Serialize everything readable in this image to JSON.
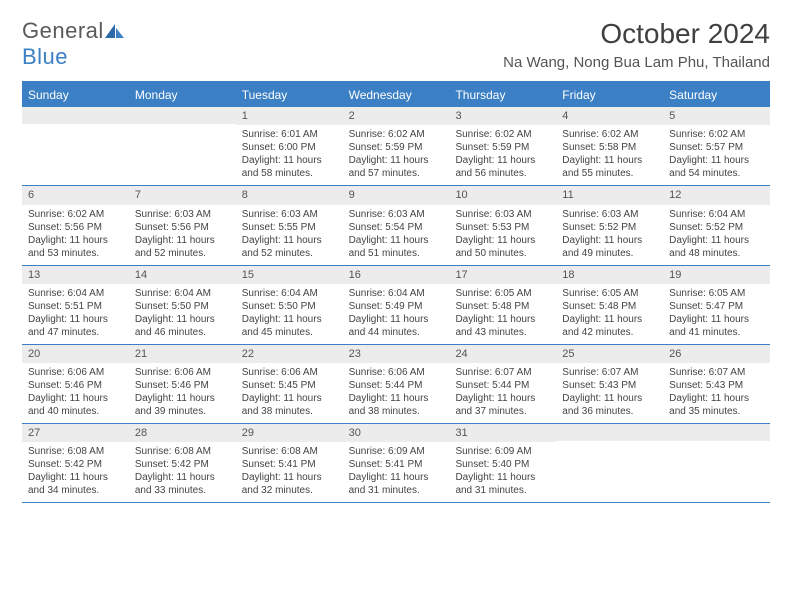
{
  "logo": {
    "word1": "General",
    "word2": "Blue"
  },
  "title": "October 2024",
  "location": "Na Wang, Nong Bua Lam Phu, Thailand",
  "colors": {
    "accent": "#3b7fc4",
    "header_bg": "#3b7fc4",
    "daynum_bg": "#ececec"
  },
  "day_headers": [
    "Sunday",
    "Monday",
    "Tuesday",
    "Wednesday",
    "Thursday",
    "Friday",
    "Saturday"
  ],
  "weeks": [
    [
      {
        "n": "",
        "sr": "",
        "ss": "",
        "dl": ""
      },
      {
        "n": "",
        "sr": "",
        "ss": "",
        "dl": ""
      },
      {
        "n": "1",
        "sr": "Sunrise: 6:01 AM",
        "ss": "Sunset: 6:00 PM",
        "dl": "Daylight: 11 hours and 58 minutes."
      },
      {
        "n": "2",
        "sr": "Sunrise: 6:02 AM",
        "ss": "Sunset: 5:59 PM",
        "dl": "Daylight: 11 hours and 57 minutes."
      },
      {
        "n": "3",
        "sr": "Sunrise: 6:02 AM",
        "ss": "Sunset: 5:59 PM",
        "dl": "Daylight: 11 hours and 56 minutes."
      },
      {
        "n": "4",
        "sr": "Sunrise: 6:02 AM",
        "ss": "Sunset: 5:58 PM",
        "dl": "Daylight: 11 hours and 55 minutes."
      },
      {
        "n": "5",
        "sr": "Sunrise: 6:02 AM",
        "ss": "Sunset: 5:57 PM",
        "dl": "Daylight: 11 hours and 54 minutes."
      }
    ],
    [
      {
        "n": "6",
        "sr": "Sunrise: 6:02 AM",
        "ss": "Sunset: 5:56 PM",
        "dl": "Daylight: 11 hours and 53 minutes."
      },
      {
        "n": "7",
        "sr": "Sunrise: 6:03 AM",
        "ss": "Sunset: 5:56 PM",
        "dl": "Daylight: 11 hours and 52 minutes."
      },
      {
        "n": "8",
        "sr": "Sunrise: 6:03 AM",
        "ss": "Sunset: 5:55 PM",
        "dl": "Daylight: 11 hours and 52 minutes."
      },
      {
        "n": "9",
        "sr": "Sunrise: 6:03 AM",
        "ss": "Sunset: 5:54 PM",
        "dl": "Daylight: 11 hours and 51 minutes."
      },
      {
        "n": "10",
        "sr": "Sunrise: 6:03 AM",
        "ss": "Sunset: 5:53 PM",
        "dl": "Daylight: 11 hours and 50 minutes."
      },
      {
        "n": "11",
        "sr": "Sunrise: 6:03 AM",
        "ss": "Sunset: 5:52 PM",
        "dl": "Daylight: 11 hours and 49 minutes."
      },
      {
        "n": "12",
        "sr": "Sunrise: 6:04 AM",
        "ss": "Sunset: 5:52 PM",
        "dl": "Daylight: 11 hours and 48 minutes."
      }
    ],
    [
      {
        "n": "13",
        "sr": "Sunrise: 6:04 AM",
        "ss": "Sunset: 5:51 PM",
        "dl": "Daylight: 11 hours and 47 minutes."
      },
      {
        "n": "14",
        "sr": "Sunrise: 6:04 AM",
        "ss": "Sunset: 5:50 PM",
        "dl": "Daylight: 11 hours and 46 minutes."
      },
      {
        "n": "15",
        "sr": "Sunrise: 6:04 AM",
        "ss": "Sunset: 5:50 PM",
        "dl": "Daylight: 11 hours and 45 minutes."
      },
      {
        "n": "16",
        "sr": "Sunrise: 6:04 AM",
        "ss": "Sunset: 5:49 PM",
        "dl": "Daylight: 11 hours and 44 minutes."
      },
      {
        "n": "17",
        "sr": "Sunrise: 6:05 AM",
        "ss": "Sunset: 5:48 PM",
        "dl": "Daylight: 11 hours and 43 minutes."
      },
      {
        "n": "18",
        "sr": "Sunrise: 6:05 AM",
        "ss": "Sunset: 5:48 PM",
        "dl": "Daylight: 11 hours and 42 minutes."
      },
      {
        "n": "19",
        "sr": "Sunrise: 6:05 AM",
        "ss": "Sunset: 5:47 PM",
        "dl": "Daylight: 11 hours and 41 minutes."
      }
    ],
    [
      {
        "n": "20",
        "sr": "Sunrise: 6:06 AM",
        "ss": "Sunset: 5:46 PM",
        "dl": "Daylight: 11 hours and 40 minutes."
      },
      {
        "n": "21",
        "sr": "Sunrise: 6:06 AM",
        "ss": "Sunset: 5:46 PM",
        "dl": "Daylight: 11 hours and 39 minutes."
      },
      {
        "n": "22",
        "sr": "Sunrise: 6:06 AM",
        "ss": "Sunset: 5:45 PM",
        "dl": "Daylight: 11 hours and 38 minutes."
      },
      {
        "n": "23",
        "sr": "Sunrise: 6:06 AM",
        "ss": "Sunset: 5:44 PM",
        "dl": "Daylight: 11 hours and 38 minutes."
      },
      {
        "n": "24",
        "sr": "Sunrise: 6:07 AM",
        "ss": "Sunset: 5:44 PM",
        "dl": "Daylight: 11 hours and 37 minutes."
      },
      {
        "n": "25",
        "sr": "Sunrise: 6:07 AM",
        "ss": "Sunset: 5:43 PM",
        "dl": "Daylight: 11 hours and 36 minutes."
      },
      {
        "n": "26",
        "sr": "Sunrise: 6:07 AM",
        "ss": "Sunset: 5:43 PM",
        "dl": "Daylight: 11 hours and 35 minutes."
      }
    ],
    [
      {
        "n": "27",
        "sr": "Sunrise: 6:08 AM",
        "ss": "Sunset: 5:42 PM",
        "dl": "Daylight: 11 hours and 34 minutes."
      },
      {
        "n": "28",
        "sr": "Sunrise: 6:08 AM",
        "ss": "Sunset: 5:42 PM",
        "dl": "Daylight: 11 hours and 33 minutes."
      },
      {
        "n": "29",
        "sr": "Sunrise: 6:08 AM",
        "ss": "Sunset: 5:41 PM",
        "dl": "Daylight: 11 hours and 32 minutes."
      },
      {
        "n": "30",
        "sr": "Sunrise: 6:09 AM",
        "ss": "Sunset: 5:41 PM",
        "dl": "Daylight: 11 hours and 31 minutes."
      },
      {
        "n": "31",
        "sr": "Sunrise: 6:09 AM",
        "ss": "Sunset: 5:40 PM",
        "dl": "Daylight: 11 hours and 31 minutes."
      },
      {
        "n": "",
        "sr": "",
        "ss": "",
        "dl": ""
      },
      {
        "n": "",
        "sr": "",
        "ss": "",
        "dl": ""
      }
    ]
  ]
}
